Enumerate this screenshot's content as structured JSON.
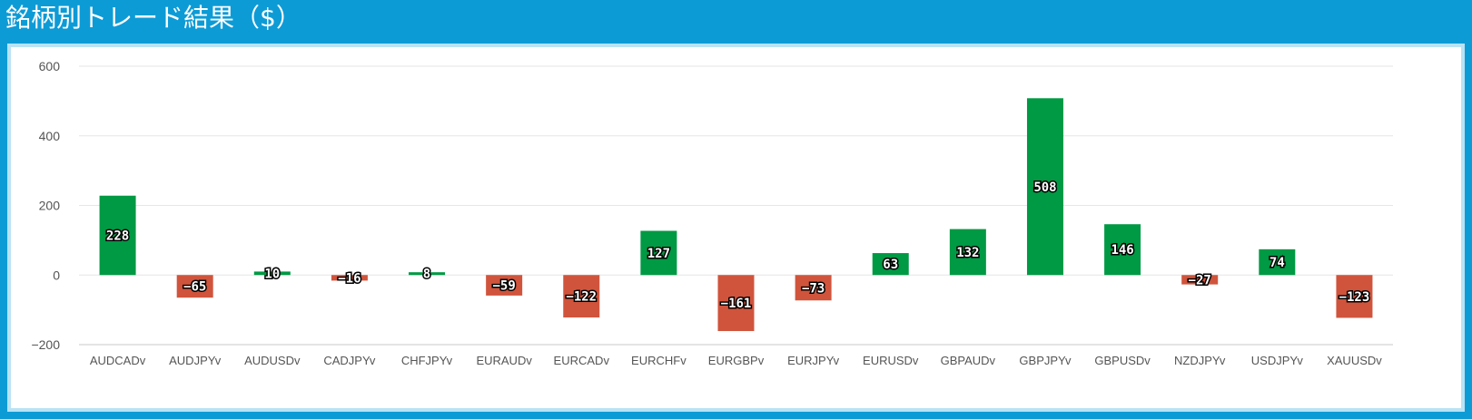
{
  "title": "銘柄別トレード結果（$）",
  "colors": {
    "header_bg": "#0d9bd6",
    "positive": "#009944",
    "negative": "#d0543c",
    "grid": "#e6e6e6",
    "axis_text": "#555555"
  },
  "chart_data": {
    "type": "bar",
    "title": "銘柄別トレード結果（$）",
    "xlabel": "",
    "ylabel": "",
    "ylim": [
      -200,
      600
    ],
    "yticks": [
      600,
      400,
      200,
      0,
      -200
    ],
    "ytick_labels": [
      "600",
      "400",
      "200",
      "0",
      "−200"
    ],
    "grid": true,
    "legend": "none",
    "categories": [
      "AUDCADv",
      "AUDJPYv",
      "AUDUSDv",
      "CADJPYv",
      "CHFJPYv",
      "EURAUDv",
      "EURCADv",
      "EURCHFv",
      "EURGBPv",
      "EURJPYv",
      "EURUSDv",
      "GBPAUDv",
      "GBPJPYv",
      "GBPUSDv",
      "NZDJPYv",
      "USDJPYv",
      "XAUUSDv"
    ],
    "values": [
      228,
      -65,
      10,
      -16,
      8,
      -59,
      -122,
      127,
      -161,
      -73,
      63,
      132,
      508,
      146,
      -27,
      74,
      -123
    ],
    "value_labels": [
      "228",
      "−65",
      "10",
      "−16",
      "8",
      "−59",
      "−122",
      "127",
      "−161",
      "−73",
      "63",
      "132",
      "508",
      "146",
      "−27",
      "74",
      "−123"
    ]
  }
}
